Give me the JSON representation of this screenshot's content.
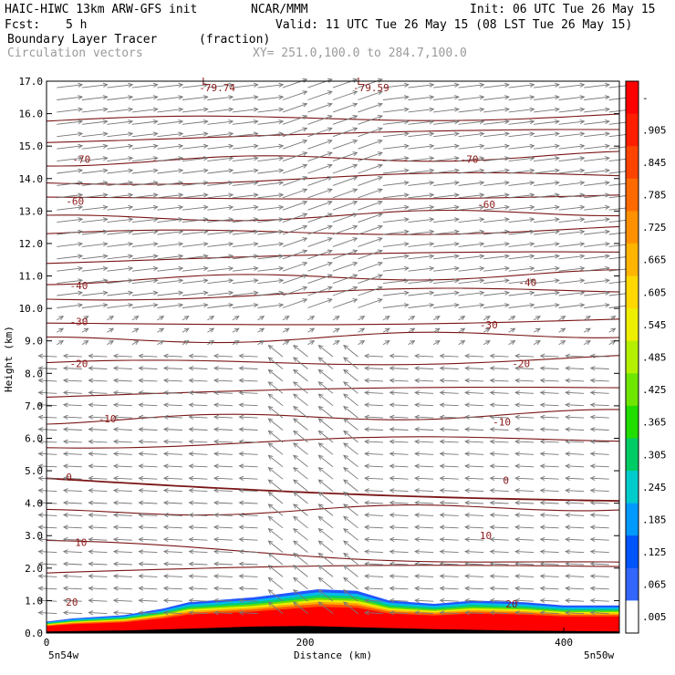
{
  "header": {
    "title_left": "HAIC-HIWC 13km ARW-GFS init",
    "org": "NCAR/MMM",
    "init": "Init: 06 UTC Tue 26 May 15",
    "fcst_label": "Fcst:",
    "fcst_value": "5 h",
    "valid": "Valid: 11 UTC Tue 26 May 15 (08 LST Tue 26 May 15)",
    "field_name": "Boundary Layer Tracer",
    "field_units": "(fraction)",
    "vector_name": "Circulation vectors",
    "xy_range": "XY= 251.0,100.0 to 284.7,100.0"
  },
  "chart_data": {
    "type": "heatmap",
    "xlabel": "Distance (km)",
    "ylabel": "Height (km)",
    "xlim": [
      0,
      443
    ],
    "ylim": [
      0,
      17
    ],
    "x_ticks": [
      "0",
      "200",
      "400"
    ],
    "y_ticks": [
      "0.0",
      "1.0",
      "2.0",
      "3.0",
      "4.0",
      "5.0",
      "6.0",
      "7.0",
      "8.0",
      "9.0",
      "10.0",
      "11.0",
      "12.0",
      "13.0",
      "14.0",
      "15.0",
      "16.0",
      "17.0"
    ],
    "x_end_labels": [
      "5n54w",
      "5n50w"
    ],
    "colorbar_labels": [
      "-",
      ".905",
      ".845",
      ".785",
      ".725",
      ".665",
      ".605",
      ".545",
      ".485",
      ".425",
      ".365",
      ".305",
      ".245",
      ".185",
      ".125",
      ".065",
      ".005"
    ],
    "colorbar_colors": [
      "#ff0000",
      "#ff1f00",
      "#ff4400",
      "#ff6a00",
      "#ff9000",
      "#ffb500",
      "#ffd800",
      "#eeee00",
      "#b4f000",
      "#6ee600",
      "#22dd00",
      "#00cc66",
      "#00cccc",
      "#0099ff",
      "#0055ff",
      "#3366ff",
      "#ffffff"
    ],
    "contour_labels": [
      {
        "text": "-79.74",
        "x": 118,
        "y": 16.8
      },
      {
        "text": "-79.59",
        "x": 237,
        "y": 16.8
      },
      {
        "text": "L",
        "x": 120,
        "y": 17.0
      },
      {
        "text": "L",
        "x": 240,
        "y": 17.0
      },
      {
        "text": "-70",
        "x": 20,
        "y": 14.6
      },
      {
        "text": "-70",
        "x": 320,
        "y": 14.6
      },
      {
        "text": "-60",
        "x": 15,
        "y": 13.3
      },
      {
        "text": "-60",
        "x": 333,
        "y": 13.2
      },
      {
        "text": "-40",
        "x": 18,
        "y": 10.7
      },
      {
        "text": "-40",
        "x": 365,
        "y": 10.8
      },
      {
        "text": "-30",
        "x": 18,
        "y": 9.6
      },
      {
        "text": "-30",
        "x": 335,
        "y": 9.5
      },
      {
        "text": "-20",
        "x": 18,
        "y": 8.3
      },
      {
        "text": "-20",
        "x": 360,
        "y": 8.3
      },
      {
        "text": "-10",
        "x": 40,
        "y": 6.6
      },
      {
        "text": "-10",
        "x": 345,
        "y": 6.5
      },
      {
        "text": "0",
        "x": 15,
        "y": 4.8
      },
      {
        "text": "0",
        "x": 353,
        "y": 4.7
      },
      {
        "text": "10",
        "x": 22,
        "y": 2.8
      },
      {
        "text": "10",
        "x": 335,
        "y": 3.0
      },
      {
        "text": "20",
        "x": 15,
        "y": 0.95
      },
      {
        "text": "20",
        "x": 355,
        "y": 0.9
      }
    ],
    "isotherm_levels_km": [
      1.85,
      2.75,
      3.7,
      4.75,
      5.8,
      6.55,
      7.3,
      8.25,
      9.0,
      9.5,
      10.35,
      10.85,
      11.45,
      12.25,
      12.75,
      13.35,
      13.9,
      14.5,
      15.2,
      15.75
    ],
    "terrain_km": [
      [
        0,
        0.05
      ],
      [
        60,
        0.08
      ],
      [
        120,
        0.15
      ],
      [
        160,
        0.2
      ],
      [
        200,
        0.22
      ],
      [
        240,
        0.18
      ],
      [
        300,
        0.12
      ],
      [
        360,
        0.08
      ],
      [
        443,
        0.05
      ]
    ],
    "tracer_top_km": [
      [
        0,
        0.35
      ],
      [
        20,
        0.45
      ],
      [
        60,
        0.55
      ],
      [
        90,
        0.75
      ],
      [
        110,
        0.95
      ],
      [
        160,
        1.1
      ],
      [
        190,
        1.25
      ],
      [
        210,
        1.35
      ],
      [
        240,
        1.3
      ],
      [
        265,
        1.0
      ],
      [
        300,
        0.9
      ],
      [
        330,
        1.0
      ],
      [
        370,
        0.95
      ],
      [
        400,
        0.85
      ],
      [
        443,
        0.85
      ]
    ]
  }
}
